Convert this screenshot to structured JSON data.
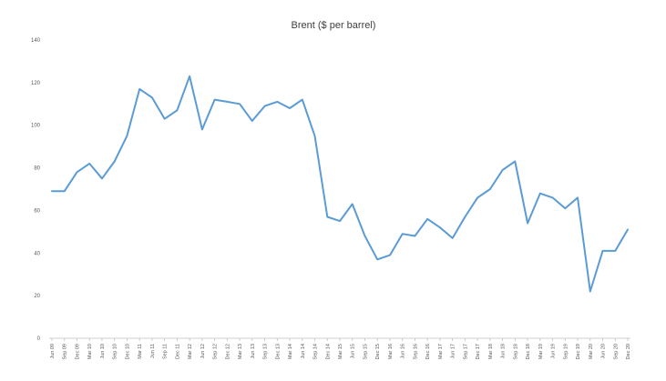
{
  "chart_data": {
    "type": "line",
    "title": "Brent ($ per barrel)",
    "xlabel": "",
    "ylabel": "",
    "ylim": [
      0,
      140
    ],
    "yticks": [
      "0",
      "20",
      "40",
      "60",
      "80",
      "100",
      "120",
      "140"
    ],
    "grid": false,
    "legend": "none",
    "line_color": "#5b9bd5",
    "categories": [
      "Jun 09",
      "Sep 09",
      "Dec 09",
      "Mar 10",
      "Jun 10",
      "Sep 10",
      "Dec 10",
      "Mar 11",
      "Jun 11",
      "Sep 11",
      "Dec 11",
      "Mar 12",
      "Jun 12",
      "Sep 12",
      "Dec 12",
      "Mar 13",
      "Jun 13",
      "Sep 13",
      "Dec 13",
      "Mar 14",
      "Jun 14",
      "Sep 14",
      "Dec 14",
      "Mar 15",
      "Jun 15",
      "Sep 15",
      "Dec 15",
      "Mar 16",
      "Jun 16",
      "Sep 16",
      "Dec 16",
      "Mar 17",
      "Jun 17",
      "Sep 17",
      "Dec 17",
      "Mar 18",
      "Jun 18",
      "Sep 18",
      "Dec 18",
      "Mar 19",
      "Jun 19",
      "Sep 19",
      "Dec 19",
      "Mar 20",
      "Jun 20",
      "Sep 20",
      "Dec 20"
    ],
    "series": [
      {
        "values": [
          69,
          69,
          78,
          82,
          75,
          83,
          95,
          117,
          113,
          103,
          107,
          123,
          98,
          112,
          111,
          110,
          102,
          109,
          111,
          108,
          112,
          95,
          57,
          55,
          63,
          48,
          37,
          39,
          49,
          48,
          56,
          52,
          47,
          57,
          66,
          70,
          79,
          83,
          54,
          68,
          66,
          61,
          66,
          22,
          41,
          41,
          51
        ]
      }
    ]
  }
}
